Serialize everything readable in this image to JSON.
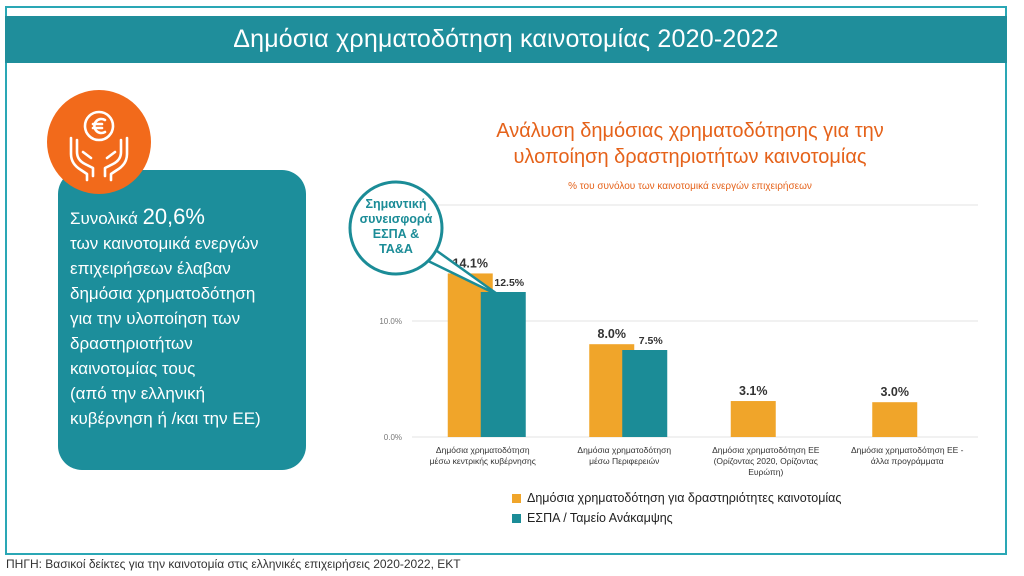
{
  "header": {
    "title": "Δημόσια χρηματοδότηση καινοτομίας 2020-2022"
  },
  "stat": {
    "prefix": "Συνολικά",
    "value": "20,6%",
    "lines": [
      "των καινοτομικά ενεργών",
      "επιχειρήσεων έλαβαν",
      "δημόσια χρηματοδότηση",
      "για την υλοποίηση των",
      "δραστηριοτήτων",
      "καινοτομίας τους",
      "(από την ελληνική",
      "κυβέρνηση ή /και την ΕΕ)"
    ]
  },
  "callout": {
    "lines": [
      "Σημαντική",
      "συνεισφορά",
      "ΕΣΠΑ &",
      "ΤΑ&Α"
    ]
  },
  "source": "ΠΗΓΗ: Βασικοί δείκτες για την καινοτομία στις ελληνικές επιχειρήσεις 2020-2022, ΕΚΤ",
  "colors": {
    "orange": "#f0a52a",
    "teal": "#1b8c97",
    "accent": "#e5621a",
    "header": "#1f8e9b"
  },
  "icon": "euro-coin-hands-icon",
  "chart_data": {
    "type": "bar",
    "title": [
      "Ανάλυση δημόσιας χρηματοδότησης για την",
      "υλοποίηση δραστηριοτήτων καινοτομίας"
    ],
    "subtitle": "% του συνόλου των καινοτομικά ενεργών επιχειρήσεων",
    "categories": [
      [
        "Δημόσια χρηματοδότηση",
        "μέσω κεντρικής κυβέρνησης"
      ],
      [
        "Δημόσια χρηματοδότηση",
        "μέσω Περιφερειών"
      ],
      [
        "Δημόσια χρηματοδότηση ΕΕ",
        "(Ορίζοντας 2020, Ορίζοντας",
        "Ευρώπη)"
      ],
      [
        "Δημόσια χρηματοδότηση ΕΕ -",
        "άλλα προγράμματα"
      ]
    ],
    "series": [
      {
        "name": "Δημόσια χρηματοδότηση για δραστηριότητες καινοτομίας",
        "values": [
          14.1,
          8.0,
          3.1,
          3.0
        ],
        "labels": [
          "14.1%",
          "8.0%",
          "3.1%",
          "3.0%"
        ]
      },
      {
        "name": "ΕΣΠΑ / Ταμείο Ανάκαμψης",
        "values": [
          12.5,
          7.5,
          null,
          null
        ],
        "labels": [
          "12.5%",
          "7.5%",
          "",
          ""
        ]
      }
    ],
    "yticks": [
      {
        "value": 0,
        "label": "0.0%"
      },
      {
        "value": 10,
        "label": "10.0%"
      }
    ],
    "ylim": [
      0,
      20
    ],
    "grid": true,
    "legend": "bottom"
  }
}
